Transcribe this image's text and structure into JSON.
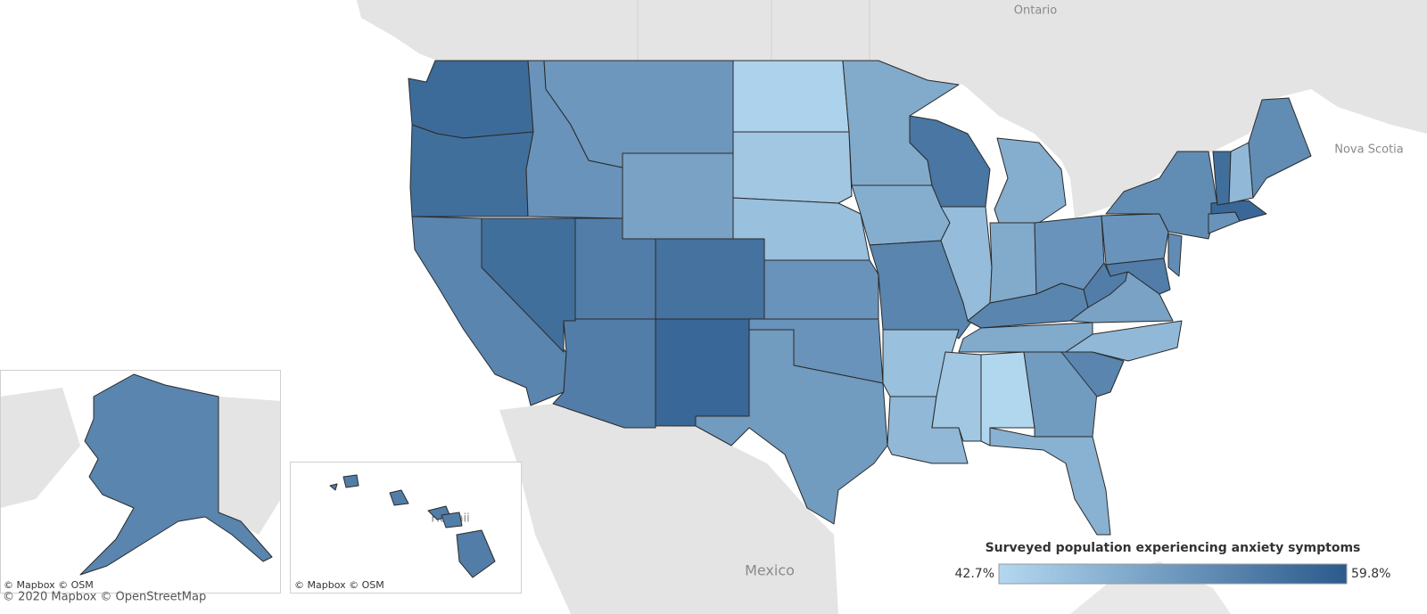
{
  "map": {
    "place_labels": [
      "Ontario",
      "Nova Scotia",
      "Mexico",
      "Hawaii"
    ],
    "attributions": [
      "© Mapbox © OSM",
      "© Mapbox © OSM",
      "© 2020 Mapbox © OpenStreetMap"
    ]
  },
  "chart_data": {
    "type": "choropleth",
    "legend_title": "Surveyed population experiencing anxiety symptoms",
    "clim": [
      42.7,
      59.8
    ],
    "cticks": [
      {
        "value": 42.7,
        "label": "42.7%"
      },
      {
        "value": 59.8,
        "label": "59.8%"
      }
    ],
    "colors": [
      "#b3d8f0",
      "#2b5a8c"
    ],
    "values": [
      57.5,
      57,
      54,
      57,
      52,
      51.5,
      50,
      55,
      56.5,
      55,
      58,
      43.5,
      45,
      46,
      52,
      52,
      51,
      49,
      48.5,
      54,
      46,
      47,
      56,
      46.5,
      48.5,
      49,
      52,
      54,
      49,
      45,
      42.9,
      51,
      48,
      54,
      47,
      50,
      55,
      52,
      53,
      55,
      53,
      52,
      58,
      57,
      47,
      53,
      54,
      55
    ]
  }
}
